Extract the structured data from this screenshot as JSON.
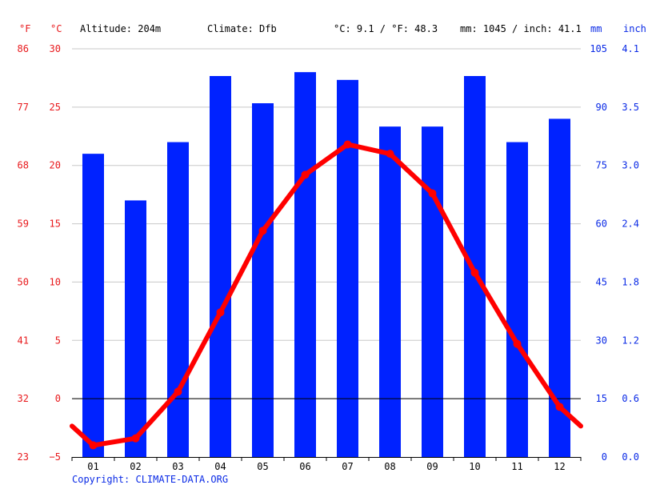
{
  "header": {
    "unit_f": "°F",
    "unit_c": "°C",
    "altitude": "Altitude: 204m",
    "climate": "Climate: Dfb",
    "avg_temp": "°C: 9.1 / °F: 48.3",
    "precip": "mm: 1045 / inch: 41.1",
    "unit_mm": "mm",
    "unit_inch": "inch"
  },
  "copyright": "Copyright: CLIMATE-DATA.ORG",
  "colors": {
    "temp_axis": "#e8191c",
    "precip_axis": "#0a2ae6",
    "bars": "#0022ff",
    "line": "#ff0000"
  },
  "chart_data": {
    "type": "bar",
    "categories": [
      "01",
      "02",
      "03",
      "04",
      "05",
      "06",
      "07",
      "08",
      "09",
      "10",
      "11",
      "12"
    ],
    "series": [
      {
        "type": "bar",
        "axis": "right",
        "values": [
          78,
          66,
          81,
          98,
          91,
          99,
          97,
          85,
          85,
          98,
          81,
          87
        ]
      },
      {
        "type": "line",
        "axis": "left",
        "values": [
          -4.0,
          -3.4,
          0.6,
          7.4,
          14.4,
          19.2,
          21.8,
          21.0,
          17.6,
          10.8,
          4.7,
          -0.7
        ]
      }
    ],
    "left_axis": {
      "celsius_ticks": [
        "30",
        "25",
        "20",
        "15",
        "10",
        "5",
        "0",
        "−5"
      ],
      "fahrenheit_ticks": [
        "86",
        "77",
        "68",
        "59",
        "50",
        "41",
        "32",
        "23"
      ],
      "range": [
        -5,
        30
      ]
    },
    "right_axis": {
      "mm_ticks": [
        "105",
        "90",
        "75",
        "60",
        "45",
        "30",
        "15",
        "0"
      ],
      "inch_ticks": [
        "4.1",
        "3.5",
        "3.0",
        "2.4",
        "1.8",
        "1.2",
        "0.6",
        "0.0"
      ],
      "range": [
        0,
        105
      ]
    },
    "grid": true
  }
}
